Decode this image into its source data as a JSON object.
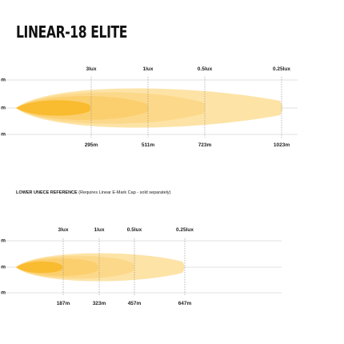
{
  "title": "LINEAR-18 ELITE",
  "top": {
    "lux_labels": [
      "3lux",
      "1lux",
      "0.5lux",
      "0.25lux"
    ],
    "distance_labels": [
      "295m",
      "511m",
      "723m",
      "1023m"
    ],
    "y_labels": [
      "m",
      "m",
      "m"
    ]
  },
  "reference": {
    "bold_text": "LOWER UNECE REFERENCE",
    "note": "(Requires Linear E-Mark Cap - sold separately)"
  },
  "bottom": {
    "lux_labels": [
      "3lux",
      "1lux",
      "0.5lux",
      "0.25lux"
    ],
    "distance_labels": [
      "187m",
      "323m",
      "457m",
      "647m"
    ],
    "y_labels": [
      "m",
      "m",
      "m"
    ]
  },
  "colors": {
    "beam_outer": "#fde3a6",
    "beam_mid2": "#fcd98a",
    "beam_mid1": "#fbcf6e",
    "beam_core": "#f9bb2f",
    "grid": "#d9d9d9",
    "tick": "#8c8c8c"
  }
}
